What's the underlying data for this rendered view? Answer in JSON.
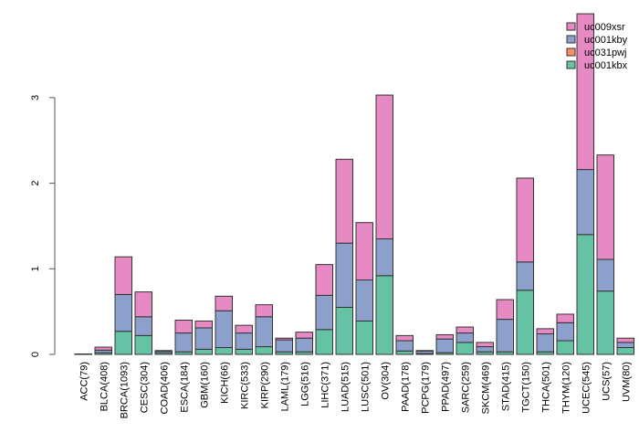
{
  "chart_data": {
    "type": "bar",
    "stacked": true,
    "title": "",
    "xlabel": "",
    "ylabel": "",
    "ylim": [
      0,
      4
    ],
    "yticks": [
      "0",
      "1",
      "2",
      "3"
    ],
    "grid": false,
    "legend_position": "top-right",
    "categories": [
      "ACC(79)",
      "BLCA(408)",
      "BRCA(1093)",
      "CESC(304)",
      "COAD(406)",
      "ESCA(184)",
      "GBM(160)",
      "KICH(66)",
      "KIRC(533)",
      "KIRP(290)",
      "LAML(179)",
      "LGG(516)",
      "LIHC(371)",
      "LUAD(515)",
      "LUSC(501)",
      "OV(304)",
      "PAAD(178)",
      "PCPG(179)",
      "PPAD(497)",
      "SARC(259)",
      "SKCM(469)",
      "STAD(415)",
      "TGCT(150)",
      "THCA(501)",
      "THYM(120)",
      "UCEC(545)",
      "UCS(57)",
      "UVM(80)"
    ],
    "series": [
      {
        "name": "uc001kbx",
        "color": "#66C2A5",
        "values": [
          0.003,
          0.02,
          0.27,
          0.22,
          0.02,
          0.03,
          0.06,
          0.08,
          0.06,
          0.09,
          0.03,
          0.03,
          0.29,
          0.55,
          0.39,
          0.92,
          0.04,
          0.01,
          0.02,
          0.14,
          0.03,
          0.03,
          0.75,
          0.03,
          0.16,
          1.4,
          0.74,
          0.08
        ]
      },
      {
        "name": "uc031pwj",
        "color": "#FC8D62",
        "values": [
          0,
          0,
          0,
          0,
          0,
          0,
          0,
          0,
          0,
          0,
          0,
          0,
          0,
          0,
          0,
          0,
          0,
          0,
          0,
          0,
          0,
          0,
          0,
          0,
          0,
          0,
          0,
          0
        ]
      },
      {
        "name": "uc001kby",
        "color": "#8DA0CB",
        "values": [
          0.001,
          0.03,
          0.43,
          0.22,
          0.02,
          0.22,
          0.25,
          0.43,
          0.19,
          0.35,
          0.14,
          0.16,
          0.4,
          0.75,
          0.48,
          0.43,
          0.12,
          0.03,
          0.16,
          0.11,
          0.06,
          0.38,
          0.33,
          0.21,
          0.21,
          0.76,
          0.37,
          0.06
        ]
      },
      {
        "name": "uc009xsr",
        "color": "#E78AC3",
        "values": [
          0.001,
          0.035,
          0.44,
          0.29,
          0.005,
          0.15,
          0.08,
          0.17,
          0.09,
          0.14,
          0.02,
          0.07,
          0.36,
          0.98,
          0.67,
          1.68,
          0.06,
          0.005,
          0.05,
          0.07,
          0.05,
          0.23,
          0.98,
          0.06,
          0.1,
          1.82,
          1.22,
          0.05
        ]
      }
    ],
    "legend_order": [
      "uc009xsr",
      "uc001kby",
      "uc031pwj",
      "uc001kbx"
    ]
  }
}
